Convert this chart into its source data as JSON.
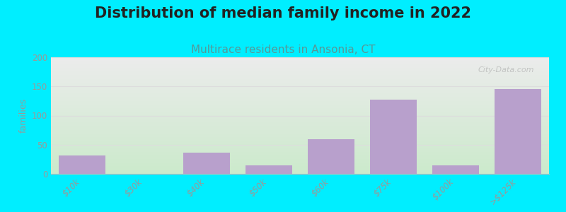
{
  "title": "Distribution of median family income in 2022",
  "subtitle": "Multirace residents in Ansonia, CT",
  "categories": [
    "$10k",
    "$30k",
    "$40k",
    "$50k",
    "$60k",
    "$75k",
    "$100k",
    ">$125k"
  ],
  "values": [
    32,
    0,
    36,
    15,
    60,
    127,
    15,
    145
  ],
  "bar_color": "#b8a0cc",
  "background_outer": "#00eeff",
  "plot_bg_top": "#ececec",
  "plot_bg_bottom": "#cceacc",
  "ylabel": "families",
  "ylim": [
    0,
    200
  ],
  "yticks": [
    0,
    50,
    100,
    150,
    200
  ],
  "title_fontsize": 15,
  "subtitle_fontsize": 11,
  "title_color": "#222222",
  "subtitle_color": "#559999",
  "watermark": "City-Data.com",
  "tick_label_color": "#999999",
  "axis_label_color": "#999999",
  "grid_color": "#dddddd"
}
